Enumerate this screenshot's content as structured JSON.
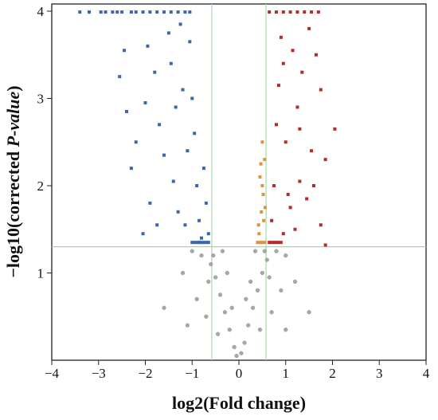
{
  "chart_data": {
    "type": "scatter",
    "title": "",
    "xlabel": "log2(Fold change)",
    "ylabel_prefix": "−log10(corrected ",
    "ylabel_italic": "P-value",
    "ylabel_suffix": ")",
    "xlim": [
      -4,
      4
    ],
    "ylim": [
      0,
      4
    ],
    "x_ticks": [
      -4,
      -3,
      -2,
      -1,
      0,
      1,
      2,
      3,
      4
    ],
    "x_tick_labels": [
      "−4",
      "−3",
      "−2",
      "−1",
      "0",
      "1",
      "2",
      "3",
      "4"
    ],
    "y_ticks": [
      1,
      2,
      3,
      4
    ],
    "y_tick_labels": [
      "1",
      "2",
      "3",
      "4"
    ],
    "grid": false,
    "legend": "none",
    "thresholds": {
      "x": [
        -0.58,
        0.58
      ],
      "y": 1.3,
      "color": "#a6d9a6"
    },
    "series": [
      {
        "color": "#3a66b0",
        "points": [
          [
            -3.4,
            3.99
          ],
          [
            -3.2,
            3.99
          ],
          [
            -2.95,
            3.99
          ],
          [
            -2.85,
            3.99
          ],
          [
            -2.7,
            3.99
          ],
          [
            -2.6,
            3.99
          ],
          [
            -2.5,
            3.99
          ],
          [
            -2.3,
            3.99
          ],
          [
            -2.2,
            3.99
          ],
          [
            -2.05,
            3.99
          ],
          [
            -1.9,
            3.99
          ],
          [
            -1.75,
            3.99
          ],
          [
            -1.6,
            3.99
          ],
          [
            -1.45,
            3.99
          ],
          [
            -1.3,
            3.99
          ],
          [
            -1.15,
            3.99
          ],
          [
            -1.05,
            3.99
          ],
          [
            -2.45,
            3.55
          ],
          [
            -2.55,
            3.25
          ],
          [
            -2.4,
            2.85
          ],
          [
            -1.95,
            3.6
          ],
          [
            -1.8,
            3.3
          ],
          [
            -2.0,
            2.95
          ],
          [
            -2.2,
            2.5
          ],
          [
            -2.3,
            2.2
          ],
          [
            -1.7,
            2.7
          ],
          [
            -1.5,
            3.75
          ],
          [
            -1.45,
            3.4
          ],
          [
            -1.6,
            2.35
          ],
          [
            -1.35,
            2.9
          ],
          [
            -1.25,
            3.85
          ],
          [
            -1.2,
            3.1
          ],
          [
            -1.4,
            2.05
          ],
          [
            -1.3,
            1.7
          ],
          [
            -1.75,
            1.55
          ],
          [
            -1.9,
            1.8
          ],
          [
            -2.05,
            1.45
          ],
          [
            -1.15,
            1.55
          ],
          [
            -1.1,
            2.4
          ],
          [
            -1.05,
            3.65
          ],
          [
            -1.0,
            3.0
          ],
          [
            -0.95,
            2.6
          ],
          [
            -0.9,
            2.0
          ],
          [
            -0.85,
            1.6
          ],
          [
            -0.8,
            1.4
          ],
          [
            -0.75,
            2.2
          ],
          [
            -0.7,
            1.8
          ],
          [
            -0.65,
            1.45
          ],
          [
            -1.0,
            1.35
          ],
          [
            -0.95,
            1.35
          ],
          [
            -0.9,
            1.35
          ],
          [
            -0.85,
            1.35
          ],
          [
            -0.8,
            1.35
          ],
          [
            -0.75,
            1.35
          ],
          [
            -0.7,
            1.35
          ],
          [
            -0.65,
            1.35
          ]
        ]
      },
      {
        "color": "#b52a2a",
        "points": [
          [
            0.65,
            3.99
          ],
          [
            0.8,
            3.99
          ],
          [
            0.95,
            3.99
          ],
          [
            1.1,
            3.99
          ],
          [
            1.25,
            3.99
          ],
          [
            1.4,
            3.99
          ],
          [
            1.55,
            3.99
          ],
          [
            1.7,
            3.99
          ],
          [
            0.9,
            3.7
          ],
          [
            1.15,
            3.55
          ],
          [
            1.5,
            3.8
          ],
          [
            1.75,
            3.1
          ],
          [
            1.65,
            3.5
          ],
          [
            1.35,
            3.3
          ],
          [
            1.25,
            2.9
          ],
          [
            1.55,
            2.4
          ],
          [
            1.85,
            2.3
          ],
          [
            2.05,
            2.65
          ],
          [
            1.85,
            1.32
          ],
          [
            1.75,
            1.55
          ],
          [
            1.3,
            2.05
          ],
          [
            1.1,
            1.75
          ],
          [
            1.0,
            2.5
          ],
          [
            0.85,
            3.15
          ],
          [
            0.75,
            2.0
          ],
          [
            0.7,
            1.6
          ],
          [
            0.65,
            1.35
          ],
          [
            0.7,
            1.35
          ],
          [
            0.75,
            1.35
          ],
          [
            0.8,
            1.35
          ],
          [
            0.85,
            1.35
          ],
          [
            0.9,
            1.35
          ],
          [
            0.95,
            1.45
          ],
          [
            1.05,
            1.9
          ],
          [
            1.2,
            1.5
          ],
          [
            1.45,
            1.85
          ],
          [
            0.8,
            2.7
          ],
          [
            0.95,
            3.4
          ],
          [
            1.3,
            2.65
          ],
          [
            1.6,
            2.0
          ]
        ]
      },
      {
        "color": "#e0913e",
        "points": [
          [
            0.4,
            1.35
          ],
          [
            0.45,
            1.35
          ],
          [
            0.5,
            1.35
          ],
          [
            0.55,
            1.35
          ],
          [
            0.42,
            1.55
          ],
          [
            0.48,
            1.7
          ],
          [
            0.52,
            1.9
          ],
          [
            0.45,
            2.1
          ],
          [
            0.55,
            2.3
          ],
          [
            0.5,
            2.5
          ],
          [
            0.47,
            2.25
          ],
          [
            0.53,
            1.6
          ],
          [
            0.43,
            1.45
          ],
          [
            0.56,
            1.75
          ],
          [
            0.5,
            2.0
          ]
        ]
      },
      {
        "color": "#a8a8a8",
        "points": [
          [
            -0.05,
            0.05
          ],
          [
            0.05,
            0.08
          ],
          [
            -0.1,
            0.15
          ],
          [
            0.12,
            0.2
          ],
          [
            -0.2,
            0.35
          ],
          [
            0.2,
            0.4
          ],
          [
            -0.3,
            0.55
          ],
          [
            0.3,
            0.6
          ],
          [
            -0.4,
            0.75
          ],
          [
            0.4,
            0.8
          ],
          [
            -0.5,
            0.95
          ],
          [
            0.5,
            1.0
          ],
          [
            -0.6,
            1.1
          ],
          [
            0.6,
            1.15
          ],
          [
            -0.8,
            1.2
          ],
          [
            0.8,
            1.25
          ],
          [
            -1.0,
            1.25
          ],
          [
            1.0,
            1.2
          ],
          [
            -0.45,
            0.3
          ],
          [
            0.45,
            0.35
          ],
          [
            -0.7,
            0.5
          ],
          [
            0.7,
            0.55
          ],
          [
            -0.9,
            0.7
          ],
          [
            0.9,
            0.8
          ],
          [
            -0.55,
            1.2
          ],
          [
            0.35,
            1.25
          ],
          [
            -0.25,
            1.0
          ],
          [
            0.25,
            0.9
          ],
          [
            -0.15,
            0.6
          ],
          [
            0.15,
            0.7
          ],
          [
            -1.2,
            1.0
          ],
          [
            1.2,
            0.9
          ],
          [
            -1.6,
            0.6
          ],
          [
            1.5,
            0.55
          ],
          [
            -1.1,
            0.4
          ],
          [
            1.0,
            0.35
          ],
          [
            -0.35,
            1.25
          ],
          [
            0.55,
            1.25
          ],
          [
            -0.65,
            0.9
          ],
          [
            0.65,
            0.95
          ]
        ]
      }
    ]
  }
}
